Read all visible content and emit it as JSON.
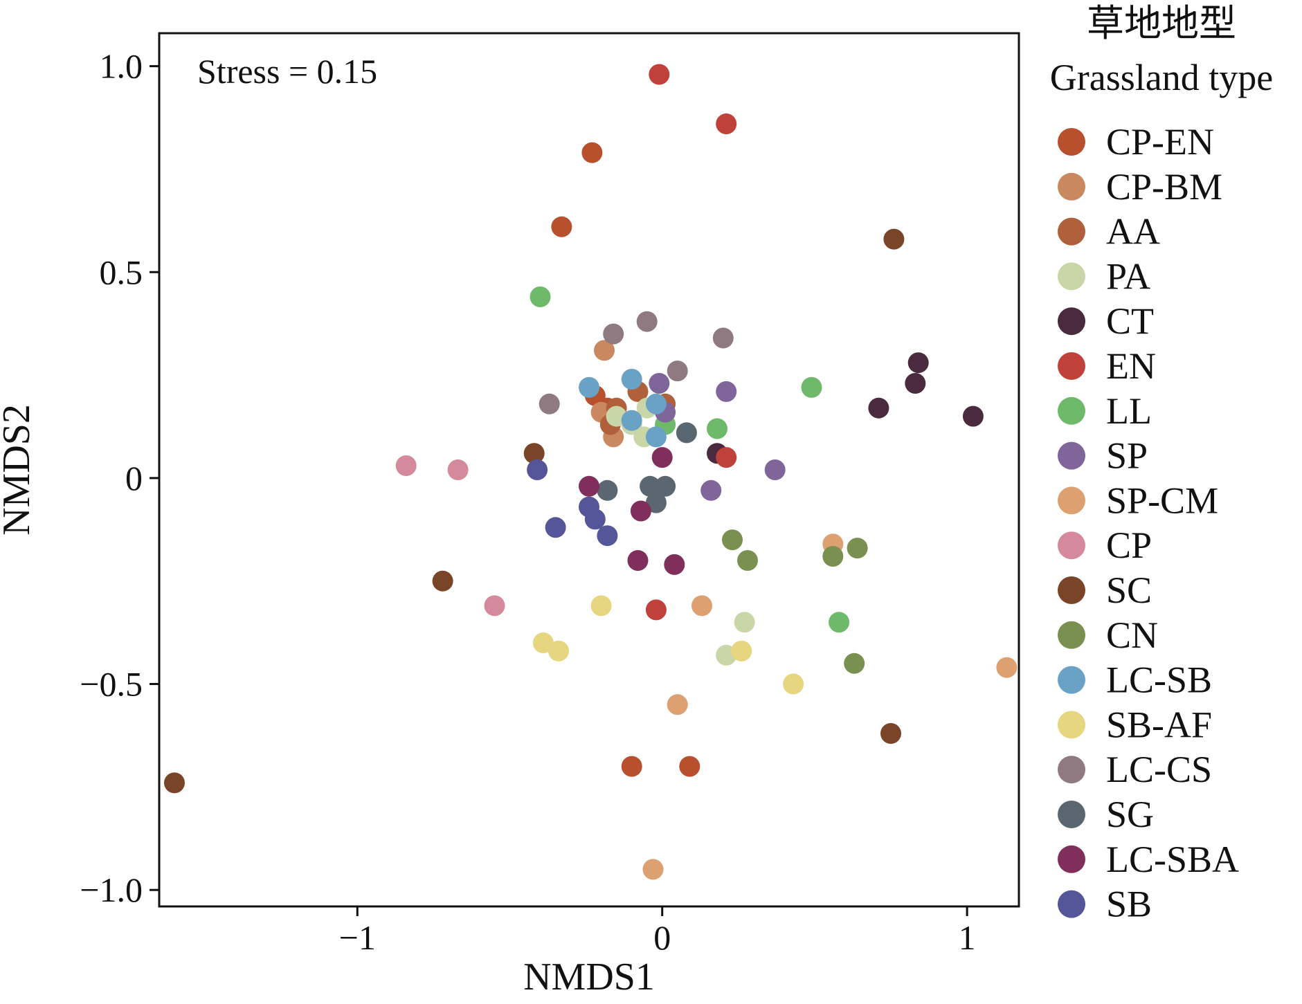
{
  "chart_data": {
    "type": "scatter",
    "xlabel": "NMDS1",
    "ylabel": "NMDS2",
    "xlim": [
      -1.65,
      1.17
    ],
    "ylim": [
      -1.04,
      1.08
    ],
    "x_ticks": [
      {
        "value": -1,
        "label": "−1"
      },
      {
        "value": 0,
        "label": "0"
      },
      {
        "value": 1,
        "label": "1"
      }
    ],
    "y_ticks": [
      {
        "value": 1.0,
        "label": "1.0"
      },
      {
        "value": 0.5,
        "label": "0.5"
      },
      {
        "value": 0,
        "label": "0"
      },
      {
        "value": -0.5,
        "label": "−0.5"
      },
      {
        "value": -1.0,
        "label": "−1.0"
      }
    ],
    "grid": false,
    "annotation": "Stress = 0.15",
    "legend": {
      "title_zh": "草地地型",
      "title_en": "Grassland type",
      "position": "right"
    },
    "series": [
      {
        "name": "CP-EN",
        "color": "#B8502E",
        "points": [
          [
            -0.23,
            0.79
          ],
          [
            -0.33,
            0.61
          ],
          [
            -0.1,
            -0.7
          ],
          [
            0.09,
            -0.7
          ],
          [
            -0.18,
            0.17
          ],
          [
            -0.22,
            0.2
          ]
        ]
      },
      {
        "name": "CP-BM",
        "color": "#C98860",
        "points": [
          [
            -0.2,
            0.16
          ],
          [
            -0.16,
            0.1
          ],
          [
            -0.19,
            0.31
          ]
        ]
      },
      {
        "name": "AA",
        "color": "#B0603A",
        "points": [
          [
            -0.15,
            0.17
          ],
          [
            0.01,
            0.18
          ],
          [
            -0.17,
            0.13
          ],
          [
            -0.08,
            0.21
          ]
        ]
      },
      {
        "name": "PA",
        "color": "#C8D6A8",
        "points": [
          [
            -0.15,
            0.15
          ],
          [
            -0.06,
            0.1
          ],
          [
            0.27,
            -0.35
          ],
          [
            0.21,
            -0.43
          ],
          [
            -0.05,
            0.17
          ],
          [
            -0.1,
            0.13
          ]
        ]
      },
      {
        "name": "CT",
        "color": "#4A2A3E",
        "points": [
          [
            0.84,
            0.28
          ],
          [
            0.83,
            0.23
          ],
          [
            1.02,
            0.15
          ],
          [
            0.71,
            0.17
          ],
          [
            0.18,
            0.06
          ]
        ]
      },
      {
        "name": "EN",
        "color": "#C0403A",
        "points": [
          [
            -0.01,
            0.98
          ],
          [
            0.21,
            0.86
          ],
          [
            0.21,
            0.05
          ],
          [
            -0.02,
            -0.32
          ]
        ]
      },
      {
        "name": "LL",
        "color": "#6EBA6A",
        "points": [
          [
            -0.4,
            0.44
          ],
          [
            0.49,
            0.22
          ],
          [
            0.18,
            0.12
          ],
          [
            0.58,
            -0.35
          ],
          [
            0.01,
            0.13
          ]
        ]
      },
      {
        "name": "SP",
        "color": "#80659A",
        "points": [
          [
            -0.01,
            0.23
          ],
          [
            0.21,
            0.21
          ],
          [
            0.37,
            0.02
          ],
          [
            0.16,
            -0.03
          ],
          [
            0.01,
            0.16
          ]
        ]
      },
      {
        "name": "SP-CM",
        "color": "#DDA070",
        "points": [
          [
            0.56,
            -0.16
          ],
          [
            0.13,
            -0.31
          ],
          [
            1.13,
            -0.46
          ],
          [
            0.05,
            -0.55
          ],
          [
            -0.03,
            -0.95
          ]
        ]
      },
      {
        "name": "CP",
        "color": "#D48A9A",
        "points": [
          [
            -0.84,
            0.03
          ],
          [
            -0.67,
            0.02
          ],
          [
            -0.55,
            -0.31
          ]
        ]
      },
      {
        "name": "SC",
        "color": "#7A4428",
        "points": [
          [
            0.76,
            0.58
          ],
          [
            -0.42,
            0.06
          ],
          [
            -0.72,
            -0.25
          ],
          [
            0.75,
            -0.62
          ],
          [
            -1.6,
            -0.74
          ]
        ]
      },
      {
        "name": "CN",
        "color": "#7A9050",
        "points": [
          [
            0.23,
            -0.15
          ],
          [
            0.28,
            -0.2
          ],
          [
            0.56,
            -0.19
          ],
          [
            0.64,
            -0.17
          ],
          [
            0.63,
            -0.45
          ]
        ]
      },
      {
        "name": "LC-SB",
        "color": "#6AA2C6",
        "points": [
          [
            -0.24,
            0.22
          ],
          [
            -0.1,
            0.24
          ],
          [
            -0.02,
            0.18
          ],
          [
            -0.02,
            0.1
          ],
          [
            -0.1,
            0.14
          ]
        ]
      },
      {
        "name": "SB-AF",
        "color": "#E6D680",
        "points": [
          [
            -0.2,
            -0.31
          ],
          [
            -0.39,
            -0.4
          ],
          [
            -0.34,
            -0.42
          ],
          [
            0.26,
            -0.42
          ],
          [
            0.43,
            -0.5
          ]
        ]
      },
      {
        "name": "LC-CS",
        "color": "#8E7A80",
        "points": [
          [
            -0.05,
            0.38
          ],
          [
            -0.16,
            0.35
          ],
          [
            0.2,
            0.34
          ],
          [
            0.05,
            0.26
          ],
          [
            -0.37,
            0.18
          ]
        ]
      },
      {
        "name": "SG",
        "color": "#5A6670",
        "points": [
          [
            0.08,
            0.11
          ],
          [
            -0.18,
            -0.03
          ],
          [
            -0.04,
            -0.02
          ],
          [
            0.01,
            -0.02
          ],
          [
            -0.02,
            -0.06
          ]
        ]
      },
      {
        "name": "LC-SBA",
        "color": "#802E5C",
        "points": [
          [
            0.0,
            0.05
          ],
          [
            -0.24,
            -0.02
          ],
          [
            -0.07,
            -0.08
          ],
          [
            -0.08,
            -0.2
          ],
          [
            0.04,
            -0.21
          ]
        ]
      },
      {
        "name": "SB",
        "color": "#55559A",
        "points": [
          [
            -0.41,
            0.02
          ],
          [
            -0.24,
            -0.07
          ],
          [
            -0.22,
            -0.1
          ],
          [
            -0.35,
            -0.12
          ],
          [
            -0.18,
            -0.14
          ]
        ]
      }
    ]
  }
}
